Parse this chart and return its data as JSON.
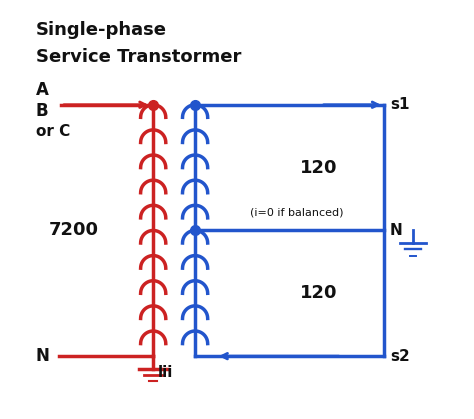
{
  "title_line1": "Single-phase",
  "title_line2": "Service Transtormer",
  "red_color": "#cc2222",
  "blue_color": "#2255cc",
  "black_color": "#111111",
  "bg_color": "#ffffff",
  "label_A": "A",
  "label_B": "B",
  "label_orC": "or C",
  "label_N_left": "N",
  "label_lii": "lii",
  "label_7200": "7200",
  "label_120_top": "120",
  "label_120_bot": "120",
  "label_neutral": "(i=0 if balanced)",
  "label_N_right": "N",
  "label_s1": "s1",
  "label_s2": "s2",
  "figsize": [
    4.74,
    4.19
  ],
  "dpi": 100
}
